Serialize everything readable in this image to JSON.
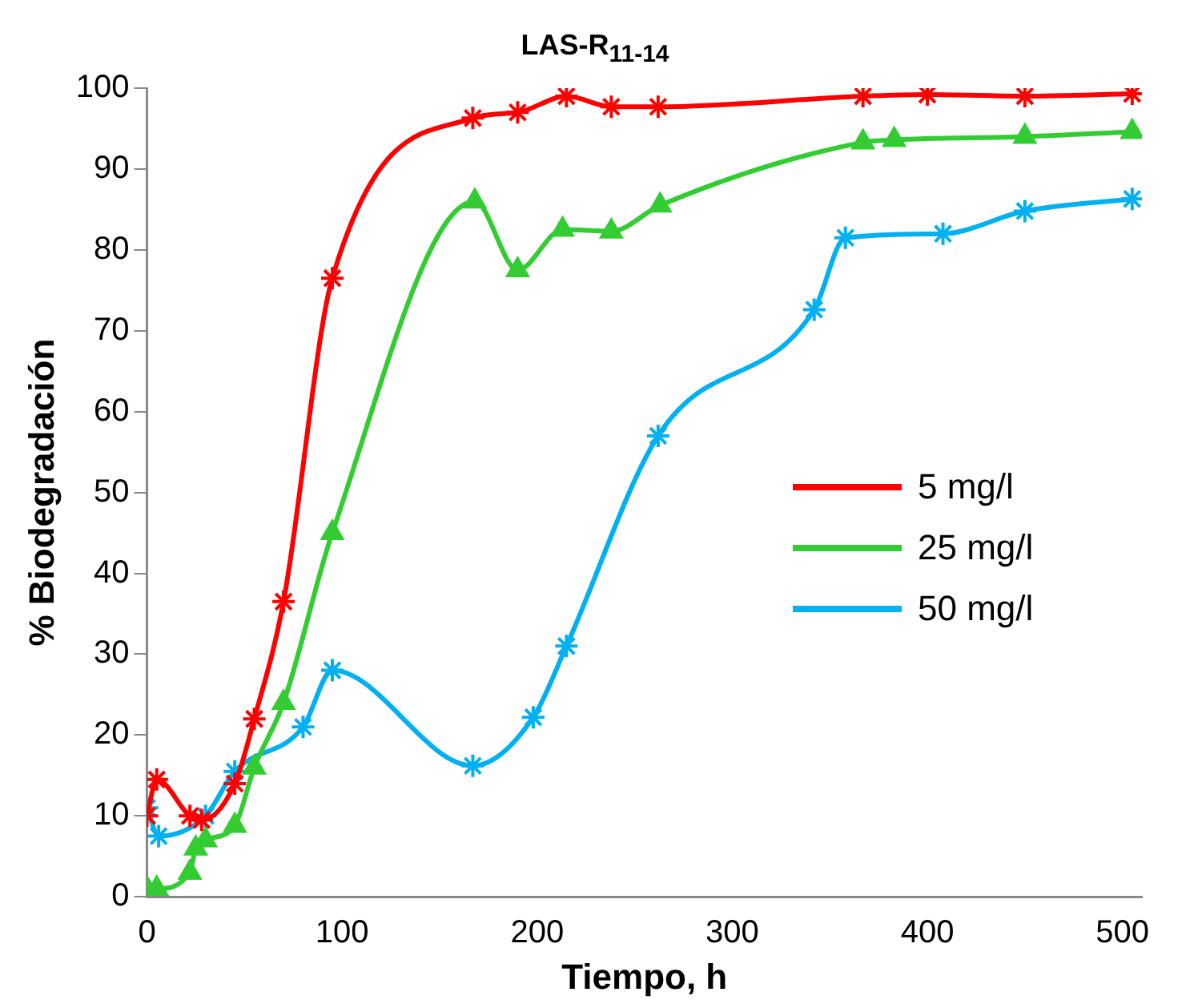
{
  "chart_data": {
    "type": "line",
    "title": "LAS-R$_{11-14}$",
    "xlabel": "Tiempo, h",
    "ylabel": "% Biodegradación",
    "xlim": [
      0,
      510
    ],
    "xticks": [
      0,
      100,
      200,
      300,
      400,
      500
    ],
    "ylim": [
      0,
      100
    ],
    "yticks": [
      0,
      10,
      20,
      30,
      40,
      50,
      60,
      70,
      80,
      90,
      100
    ],
    "grid": false,
    "legend": "right",
    "line_style": "solid",
    "series": [
      {
        "name": "5 mg/l",
        "color": "#ff0000",
        "marker": "cross",
        "x": [
          0,
          5,
          22,
          28,
          45,
          55,
          70,
          95,
          167,
          190,
          215,
          238,
          262,
          367,
          400,
          450,
          505
        ],
        "values": [
          10,
          14.5,
          10,
          9.5,
          14,
          22,
          36.5,
          76.5,
          96.3,
          97,
          99,
          97.7,
          97.7,
          99,
          99.2,
          99,
          99.3
        ]
      },
      {
        "name": "25 mg/l",
        "color": "#33cc33",
        "marker": "triangle",
        "x": [
          0,
          5,
          22,
          25,
          30,
          45,
          55,
          70,
          95,
          168,
          190,
          213,
          238,
          263,
          367,
          383,
          450,
          505
        ],
        "values": [
          1,
          1,
          3,
          6,
          7,
          8.8,
          16,
          24,
          45,
          86,
          77.5,
          82.5,
          82.3,
          85.5,
          93.3,
          93.6,
          94,
          94.6
        ]
      },
      {
        "name": "50 mg/l",
        "color": "#00b0f0",
        "marker": "cross",
        "x": [
          0,
          6,
          30,
          45,
          80,
          95,
          167,
          198,
          215,
          262,
          342,
          358,
          408,
          450,
          505
        ],
        "values": [
          11,
          7.5,
          10,
          15.5,
          21,
          28,
          16.2,
          22.2,
          31,
          57,
          72.6,
          81.5,
          82,
          84.8,
          86.3
        ]
      }
    ]
  }
}
